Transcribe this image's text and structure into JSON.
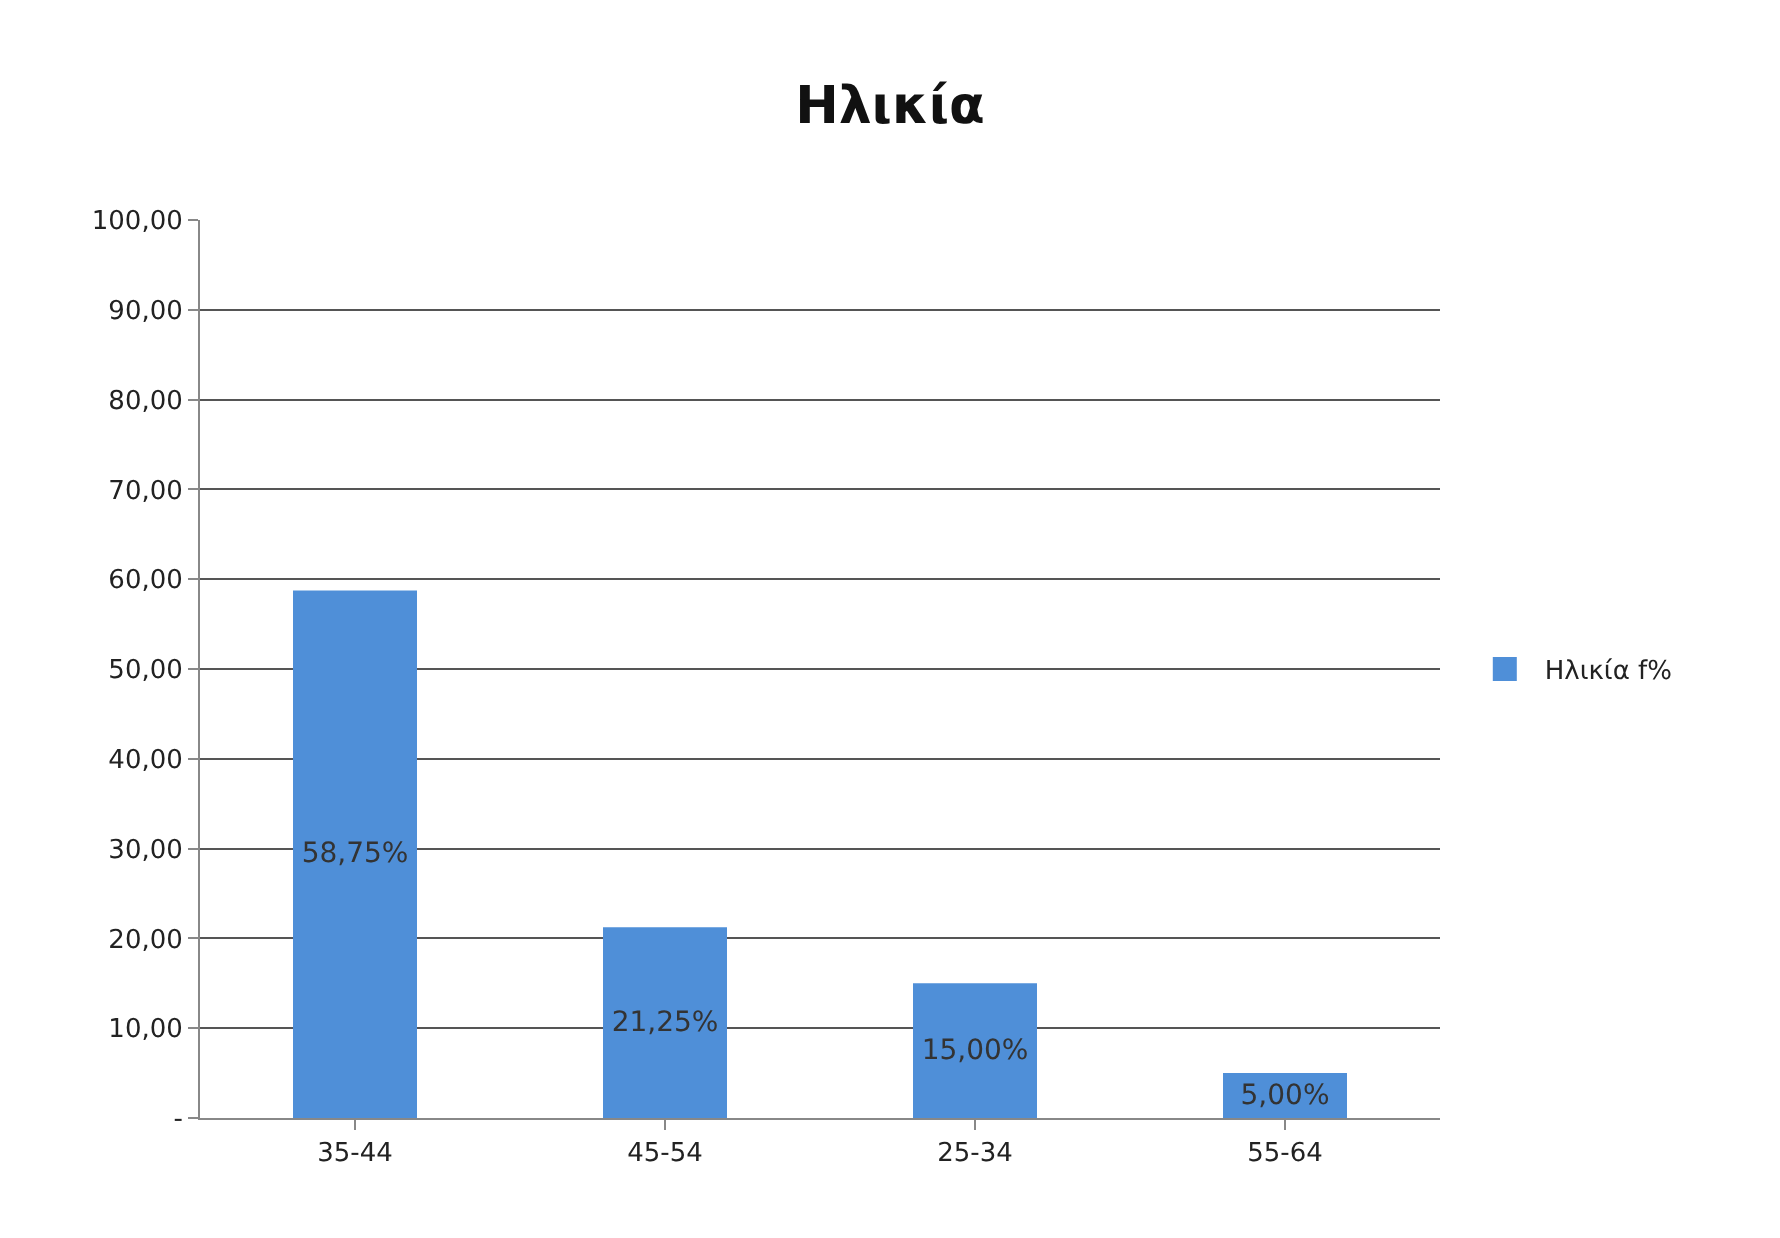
{
  "chart_data": {
    "type": "bar",
    "title": "Ηλικία",
    "categories": [
      "35-44",
      "45-54",
      "25-34",
      "55-64"
    ],
    "series": [
      {
        "name": "Ηλικία f%",
        "color": "#4f8fd8",
        "values": [
          58.75,
          21.25,
          15.0,
          5.0
        ],
        "value_labels": [
          "58,75%",
          "21,25%",
          "15,00%",
          "5,00%"
        ]
      }
    ],
    "ylim": [
      0,
      100
    ],
    "yticks": [
      {
        "value": 0,
        "label": "-"
      },
      {
        "value": 10,
        "label": "10,00"
      },
      {
        "value": 20,
        "label": "20,00"
      },
      {
        "value": 30,
        "label": "30,00"
      },
      {
        "value": 40,
        "label": "40,00"
      },
      {
        "value": 50,
        "label": "50,00"
      },
      {
        "value": 60,
        "label": "60,00"
      },
      {
        "value": 70,
        "label": "70,00"
      },
      {
        "value": 80,
        "label": "80,00"
      },
      {
        "value": 90,
        "label": "90,00"
      },
      {
        "value": 100,
        "label": "100,00"
      }
    ],
    "grid": "y",
    "legend": "right"
  }
}
